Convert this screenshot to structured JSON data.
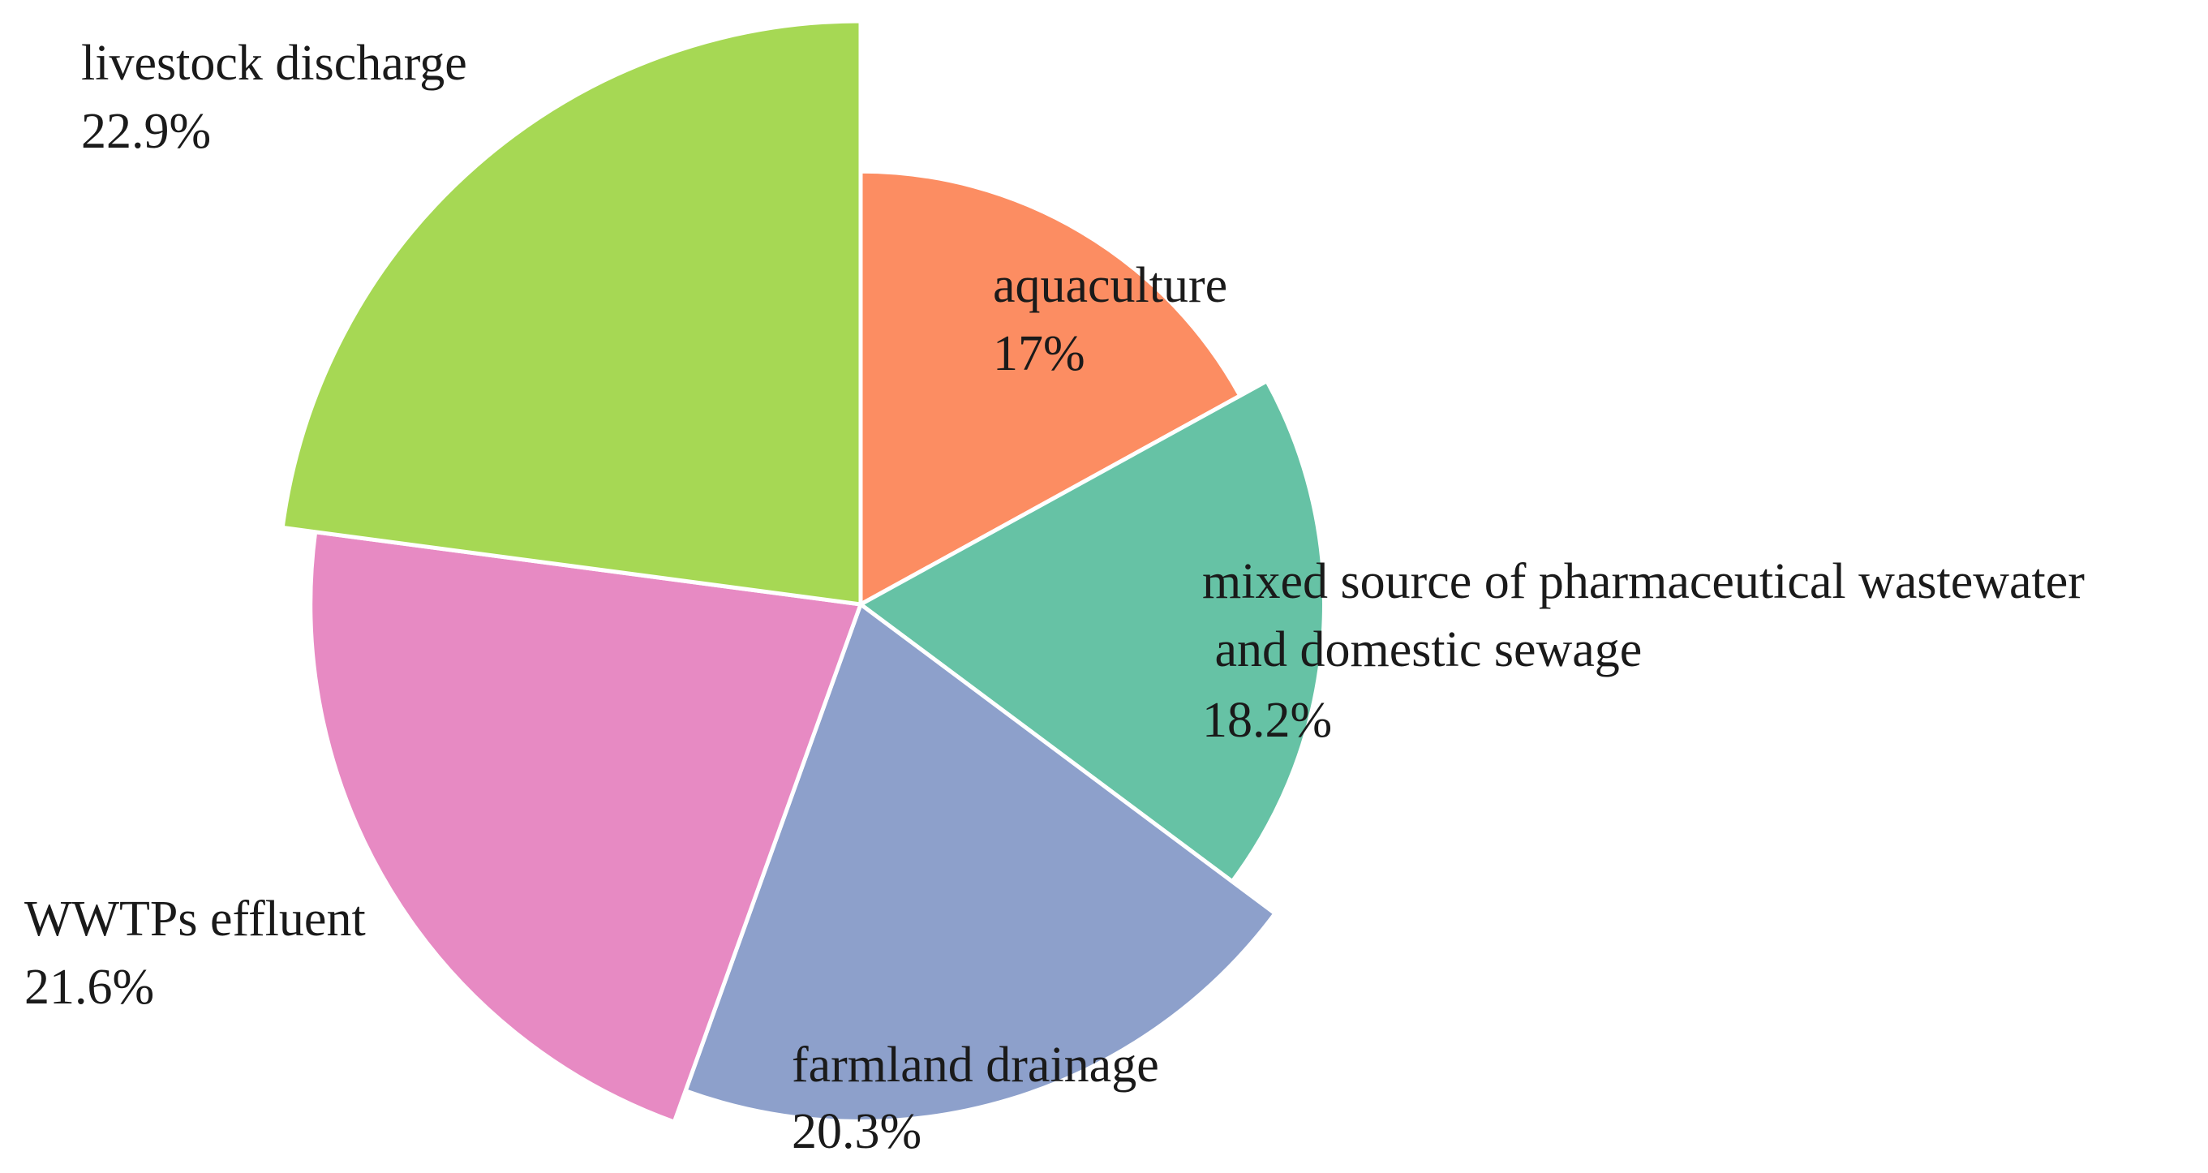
{
  "chart_data": {
    "type": "pie",
    "variant": "rose",
    "slices": [
      {
        "label": "aquaculture",
        "value": 17,
        "value_label": "17%",
        "color": "#FC8D62"
      },
      {
        "label": "mixed source of pharmaceutical wastewater",
        "label_line2": " and domestic sewage",
        "value": 18.2,
        "value_label": "18.2%",
        "color": "#66C2A5"
      },
      {
        "label": "farmland drainage",
        "value": 20.3,
        "value_label": "20.3%",
        "color": "#8DA0CB"
      },
      {
        "label": "WWTPs effluent",
        "value": 21.6,
        "value_label": "21.6%",
        "color": "#E78AC3"
      },
      {
        "label": "livestock discharge",
        "value": 22.9,
        "value_label": "22.9%",
        "color": "#A6D854"
      }
    ]
  }
}
